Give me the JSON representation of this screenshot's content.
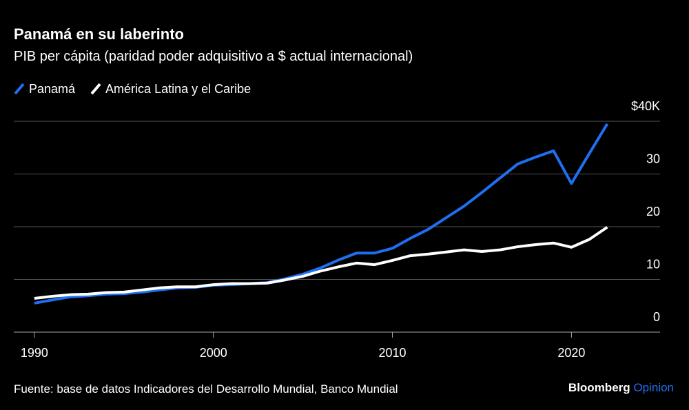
{
  "chart_data": {
    "type": "line",
    "title": "Panamá en su laberinto",
    "subtitle": "PIB per cápita (paridad poder adquisitivo a $ actual internacional)",
    "source": "Fuente: base de datos Indicadores del Desarrollo Mundial, Banco Mundial",
    "brand": [
      "Bloomberg",
      "Opinion"
    ],
    "x": [
      1990,
      1991,
      1992,
      1993,
      1994,
      1995,
      1996,
      1997,
      1998,
      1999,
      2000,
      2001,
      2002,
      2003,
      2004,
      2005,
      2006,
      2007,
      2008,
      2009,
      2010,
      2011,
      2012,
      2013,
      2014,
      2015,
      2016,
      2017,
      2018,
      2019,
      2020,
      2021,
      2022
    ],
    "series": [
      {
        "name": "Panamá",
        "color": "#1f6ff2",
        "values": [
          5.5,
          6.1,
          6.7,
          6.9,
          7.2,
          7.3,
          7.6,
          8.0,
          8.4,
          8.5,
          8.9,
          9.0,
          9.2,
          9.4,
          10.1,
          11.0,
          12.2,
          13.7,
          15.0,
          15.0,
          15.9,
          17.8,
          19.5,
          21.7,
          23.9,
          26.5,
          29.2,
          31.9,
          33.2,
          34.4,
          28.2,
          33.9,
          39.5
        ]
      },
      {
        "name": "América Latina y el Caribe",
        "color": "#ffffff",
        "values": [
          6.4,
          6.8,
          7.1,
          7.2,
          7.5,
          7.6,
          8.0,
          8.4,
          8.6,
          8.6,
          9.0,
          9.2,
          9.2,
          9.3,
          9.9,
          10.6,
          11.6,
          12.4,
          13.1,
          12.8,
          13.6,
          14.5,
          14.8,
          15.2,
          15.6,
          15.3,
          15.6,
          16.2,
          16.6,
          16.9,
          16.1,
          17.6,
          19.9
        ]
      }
    ],
    "xlim": [
      1988.85,
      2024.95
    ],
    "xticks": [
      1990,
      2000,
      2010,
      2020
    ],
    "ylim": [
      0,
      40
    ],
    "yticks": [
      0,
      10,
      20,
      30,
      {
        "value": 40,
        "label": "$40K"
      }
    ],
    "grid": true
  }
}
